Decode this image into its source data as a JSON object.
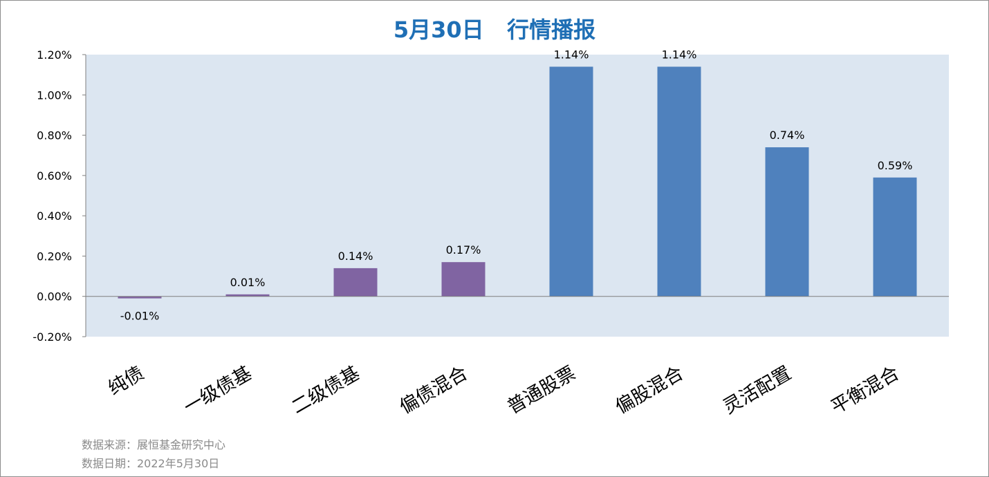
{
  "chart_data": {
    "type": "bar",
    "title": "5月30日   行情播报",
    "categories": [
      "纯债",
      "一级债基",
      "二级债基",
      "偏债混合",
      "普通股票",
      "偏股混合",
      "灵活配置",
      "平衡混合"
    ],
    "values": [
      -0.01,
      0.01,
      0.14,
      0.17,
      1.14,
      1.14,
      0.74,
      0.59
    ],
    "data_labels": [
      "-0.01%",
      "0.01%",
      "0.14%",
      "0.17%",
      "1.14%",
      "1.14%",
      "0.74%",
      "0.59%"
    ],
    "ylim": [
      -0.2,
      1.2
    ],
    "yticks": [
      1.2,
      1.0,
      0.8,
      0.6,
      0.4,
      0.2,
      0.0,
      -0.2
    ],
    "ytick_labels": [
      "1.20%",
      "1.00%",
      "0.80%",
      "0.60%",
      "0.40%",
      "0.20%",
      "0.00%",
      "-0.20%"
    ],
    "xlabel": "",
    "ylabel": "",
    "grid": false,
    "legend": "none",
    "colors": {
      "bond_group": "#8064a2",
      "equity_group": "#4f81bd",
      "plot_background": "#dce6f1",
      "title": "#1f6fb5"
    },
    "bar_colors": [
      "#8064a2",
      "#8064a2",
      "#8064a2",
      "#8064a2",
      "#4f81bd",
      "#4f81bd",
      "#4f81bd",
      "#4f81bd"
    ]
  },
  "footnotes": {
    "source": "数据来源：展恒基金研究中心",
    "date": "数据日期：2022年5月30日"
  }
}
